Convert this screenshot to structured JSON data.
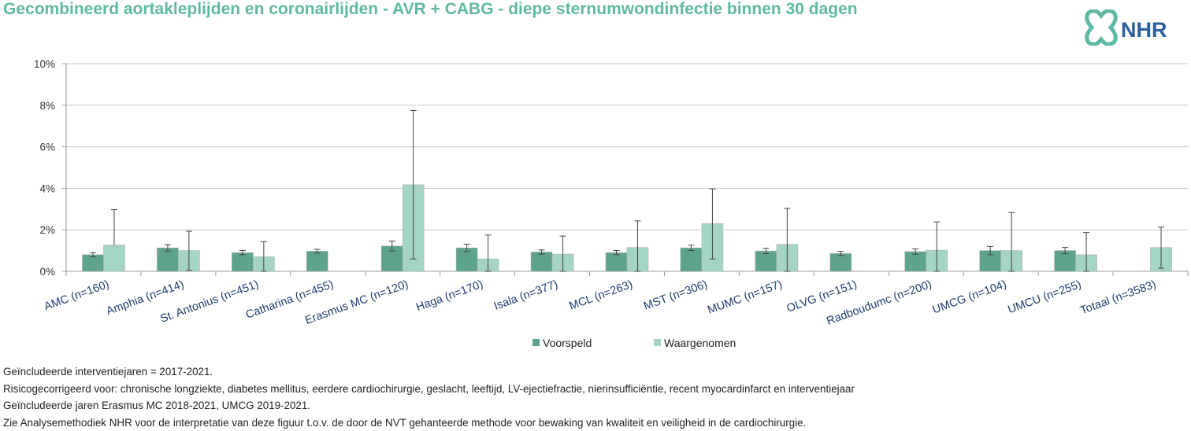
{
  "title": "Gecombineerd aortakleplijden en coronairlijden - AVR + CABG - diepe sternumwondinfectie binnen 30 dagen",
  "logo": {
    "text": "NHR",
    "icon": "nhr-cross-logo-icon"
  },
  "colors": {
    "predicted": "#5da38e",
    "observed": "#a4d4c4",
    "title": "#5fb8a3",
    "logo": "#2a5f9a"
  },
  "chart_data": {
    "type": "bar",
    "ylim": [
      0,
      10
    ],
    "yticks": [
      "0%",
      "2%",
      "4%",
      "6%",
      "8%",
      "10%"
    ],
    "categories": [
      "AMC (n=160)",
      "Amphia (n=414)",
      "St. Antonius (n=451)",
      "Catharina (n=455)",
      "Erasmus MC (n=120)",
      "Haga (n=170)",
      "Isala (n=377)",
      "MCL (n=263)",
      "MST (n=306)",
      "MUMC (n=157)",
      "OLVG (n=151)",
      "Radboudumc (n=200)",
      "UMCG (n=104)",
      "UMCU (n=255)",
      "Totaal (n=3583)"
    ],
    "series": [
      {
        "name": "Voorspeld",
        "values": [
          0.8,
          1.13,
          0.9,
          0.97,
          1.22,
          1.13,
          0.93,
          0.9,
          1.13,
          0.98,
          0.86,
          0.95,
          1.0,
          1.0,
          null
        ],
        "err_low": [
          0.7,
          0.98,
          0.8,
          0.88,
          0.98,
          0.95,
          0.83,
          0.8,
          1.0,
          0.85,
          0.76,
          0.82,
          0.8,
          0.85,
          null
        ],
        "err_high": [
          0.9,
          1.28,
          1.0,
          1.06,
          1.46,
          1.31,
          1.03,
          1.0,
          1.26,
          1.11,
          0.96,
          1.08,
          1.2,
          1.15,
          null
        ]
      },
      {
        "name": "Waargenomen",
        "values": [
          1.27,
          1.0,
          0.7,
          0.0,
          4.17,
          0.6,
          0.83,
          1.15,
          2.3,
          1.3,
          0.0,
          1.02,
          1.0,
          0.8,
          1.15
        ],
        "err_low": [
          null,
          0.05,
          0.0,
          null,
          0.6,
          0.0,
          0.0,
          0.0,
          0.6,
          0.0,
          null,
          0.0,
          0.0,
          0.0,
          0.15
        ],
        "err_high": [
          2.97,
          1.93,
          1.43,
          null,
          7.75,
          1.75,
          1.7,
          2.43,
          3.97,
          3.03,
          null,
          2.38,
          2.83,
          1.87,
          2.13
        ]
      }
    ]
  },
  "notes": [
    "Geïncludeerde interventiejaren = 2017-2021.",
    "Risicogecorrigeerd voor: chronische longziekte, diabetes mellitus, eerdere cardiochirurgie, geslacht, leeftijd, LV-ejectiefractie, nierinsufficiëntie, recent myocardinfarct en interventiejaar",
    "Geïncludeerde jaren Erasmus MC 2018-2021, UMCG 2019-2021.",
    "Zie Analysemethodiek NHR voor de interpretatie van deze figuur t.o.v. de door de NVT gehanteerde methode voor bewaking van kwaliteit en veiligheid in de cardiochirurgie."
  ]
}
